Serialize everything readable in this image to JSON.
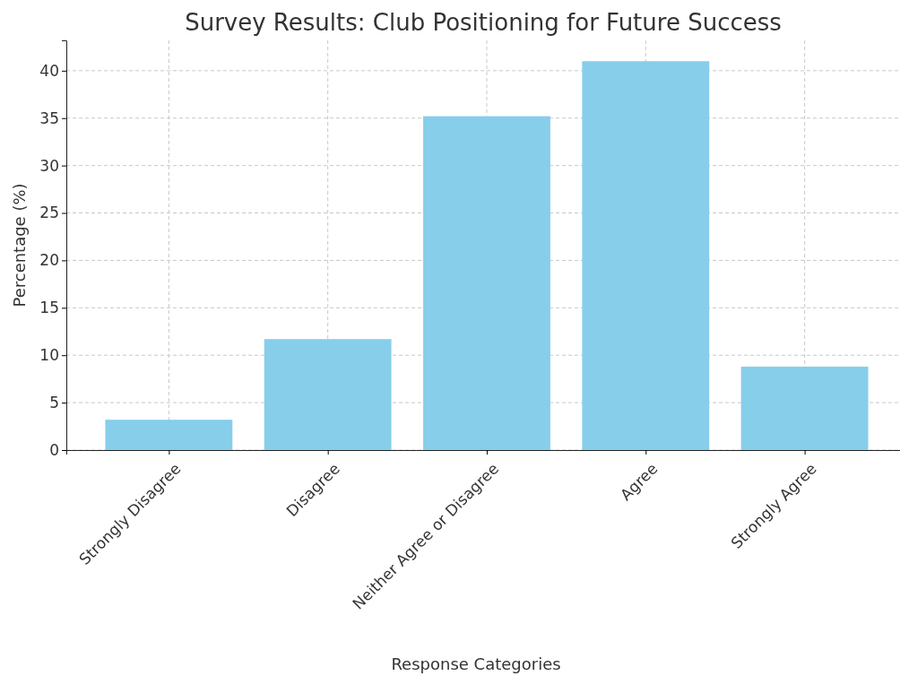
{
  "chart_data": {
    "type": "bar",
    "title": "Survey Results: Club Positioning for Future Success",
    "xlabel": "Response Categories",
    "ylabel": "Percentage (%)",
    "categories": [
      "Strongly Disagree",
      "Disagree",
      "Neither Agree or Disagree",
      "Agree",
      "Strongly Agree"
    ],
    "values": [
      3.2,
      11.7,
      35.2,
      41.0,
      8.8
    ],
    "color": "#87ceeb",
    "ylim": [
      0,
      43.2
    ],
    "yticks": [
      0,
      5,
      10,
      15,
      20,
      25,
      30,
      35,
      40
    ],
    "grid": true
  }
}
